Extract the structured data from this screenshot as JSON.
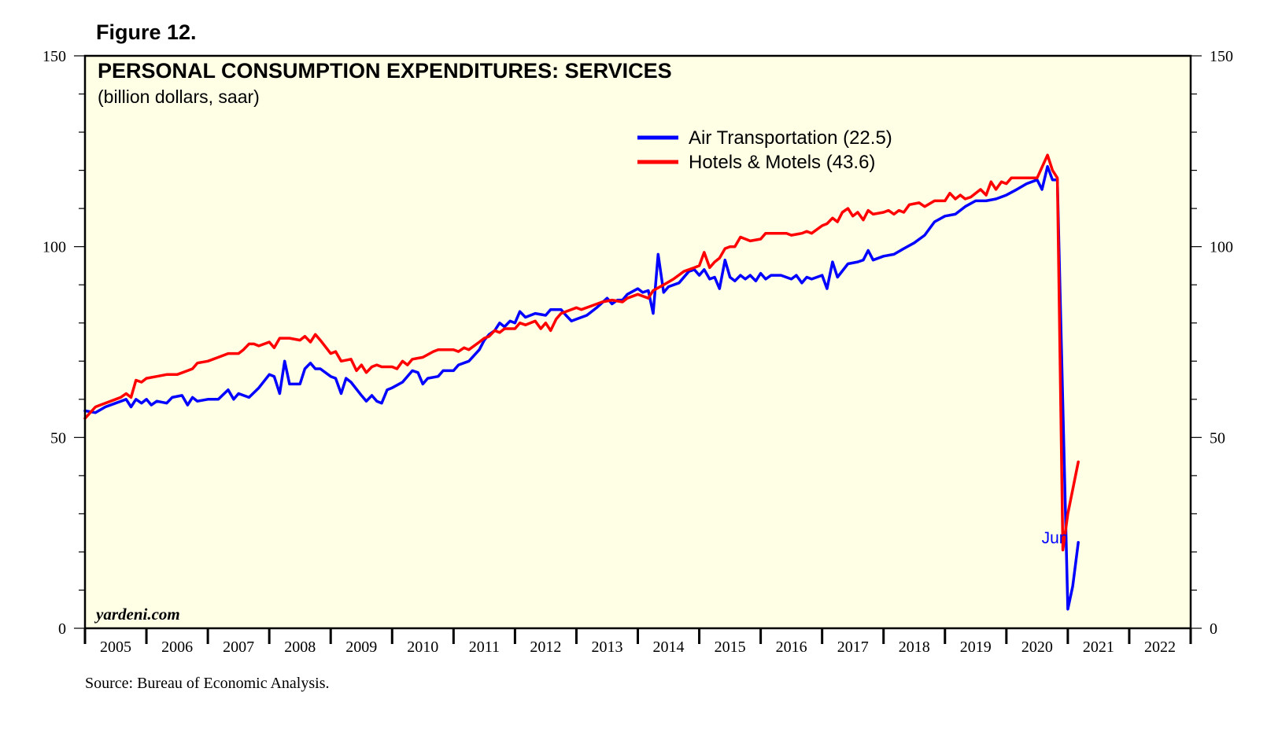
{
  "figure_label": "Figure 12.",
  "source": "Source: Bureau of Economic Analysis.",
  "watermark": "yardeni.com",
  "colors": {
    "plot_bg": "#ffffe6",
    "air": "#0000ff",
    "hotels": "#ff0000",
    "axis": "#000000"
  },
  "chart_data": {
    "type": "line",
    "title": "PERSONAL CONSUMPTION EXPENDITURES: SERVICES",
    "subtitle": "(billion dollars, saar)",
    "xlabel": "",
    "ylabel": "",
    "xlim": [
      2005,
      2023
    ],
    "ylim": [
      0,
      150
    ],
    "y_ticks": [
      0,
      50,
      100,
      150
    ],
    "x_tick_labels": [
      "2005",
      "2006",
      "2007",
      "2008",
      "2009",
      "2010",
      "2011",
      "2012",
      "2013",
      "2014",
      "2015",
      "2016",
      "2017",
      "2018",
      "2019",
      "2020",
      "2021",
      "2022"
    ],
    "legend_position": "top-center",
    "annotation": {
      "text": "Jun",
      "x": 2020.42,
      "y": 22.5
    },
    "series": [
      {
        "name": "Air Transportation (22.5)",
        "color": "#0000ff",
        "points": [
          [
            2005.0,
            57
          ],
          [
            2005.17,
            56.5
          ],
          [
            2005.33,
            58
          ],
          [
            2005.5,
            59
          ],
          [
            2005.67,
            60
          ],
          [
            2005.75,
            58
          ],
          [
            2005.83,
            60
          ],
          [
            2005.92,
            59
          ],
          [
            2006.0,
            60
          ],
          [
            2006.08,
            58.5
          ],
          [
            2006.17,
            59.5
          ],
          [
            2006.33,
            59
          ],
          [
            2006.42,
            60.5
          ],
          [
            2006.58,
            61
          ],
          [
            2006.67,
            58.5
          ],
          [
            2006.75,
            60.5
          ],
          [
            2006.83,
            59.5
          ],
          [
            2007.0,
            60
          ],
          [
            2007.17,
            60
          ],
          [
            2007.33,
            62.5
          ],
          [
            2007.42,
            60
          ],
          [
            2007.5,
            61.5
          ],
          [
            2007.67,
            60.5
          ],
          [
            2007.83,
            63
          ],
          [
            2008.0,
            66.5
          ],
          [
            2008.08,
            66
          ],
          [
            2008.17,
            61.5
          ],
          [
            2008.25,
            70
          ],
          [
            2008.33,
            64
          ],
          [
            2008.5,
            64
          ],
          [
            2008.58,
            68
          ],
          [
            2008.67,
            69.5
          ],
          [
            2008.75,
            68
          ],
          [
            2008.83,
            68
          ],
          [
            2009.0,
            66
          ],
          [
            2009.08,
            65.5
          ],
          [
            2009.17,
            61.5
          ],
          [
            2009.25,
            65.5
          ],
          [
            2009.33,
            64.5
          ],
          [
            2009.5,
            61
          ],
          [
            2009.58,
            59.5
          ],
          [
            2009.67,
            61
          ],
          [
            2009.75,
            59.5
          ],
          [
            2009.83,
            59
          ],
          [
            2009.92,
            62.5
          ],
          [
            2010.0,
            63
          ],
          [
            2010.17,
            64.5
          ],
          [
            2010.33,
            67.5
          ],
          [
            2010.42,
            67
          ],
          [
            2010.5,
            64
          ],
          [
            2010.58,
            65.5
          ],
          [
            2010.75,
            66
          ],
          [
            2010.83,
            67.5
          ],
          [
            2011.0,
            67.5
          ],
          [
            2011.08,
            69
          ],
          [
            2011.25,
            70
          ],
          [
            2011.42,
            73
          ],
          [
            2011.5,
            75.5
          ],
          [
            2011.58,
            77
          ],
          [
            2011.67,
            78
          ],
          [
            2011.75,
            80
          ],
          [
            2011.83,
            79
          ],
          [
            2011.92,
            80.5
          ],
          [
            2012.0,
            80
          ],
          [
            2012.08,
            83
          ],
          [
            2012.17,
            81.5
          ],
          [
            2012.33,
            82.5
          ],
          [
            2012.5,
            82
          ],
          [
            2012.58,
            83.5
          ],
          [
            2012.75,
            83.5
          ],
          [
            2012.83,
            82
          ],
          [
            2012.92,
            80.5
          ],
          [
            2013.0,
            81
          ],
          [
            2013.17,
            82
          ],
          [
            2013.33,
            84
          ],
          [
            2013.5,
            86.5
          ],
          [
            2013.58,
            85
          ],
          [
            2013.67,
            86
          ],
          [
            2013.75,
            86
          ],
          [
            2013.83,
            87.5
          ],
          [
            2014.0,
            89
          ],
          [
            2014.08,
            88
          ],
          [
            2014.17,
            88.5
          ],
          [
            2014.25,
            82.5
          ],
          [
            2014.33,
            98
          ],
          [
            2014.42,
            88
          ],
          [
            2014.5,
            89.5
          ],
          [
            2014.67,
            90.5
          ],
          [
            2014.83,
            93.5
          ],
          [
            2014.92,
            94
          ],
          [
            2015.0,
            92.5
          ],
          [
            2015.08,
            94
          ],
          [
            2015.17,
            91.5
          ],
          [
            2015.25,
            92
          ],
          [
            2015.33,
            89
          ],
          [
            2015.42,
            96.5
          ],
          [
            2015.5,
            92
          ],
          [
            2015.58,
            91
          ],
          [
            2015.67,
            92.5
          ],
          [
            2015.75,
            91.5
          ],
          [
            2015.83,
            92.5
          ],
          [
            2015.92,
            91
          ],
          [
            2016.0,
            93
          ],
          [
            2016.08,
            91.5
          ],
          [
            2016.17,
            92.5
          ],
          [
            2016.33,
            92.5
          ],
          [
            2016.5,
            91.5
          ],
          [
            2016.58,
            92.5
          ],
          [
            2016.67,
            90.5
          ],
          [
            2016.75,
            92
          ],
          [
            2016.83,
            91.5
          ],
          [
            2017.0,
            92.5
          ],
          [
            2017.08,
            89
          ],
          [
            2017.17,
            96
          ],
          [
            2017.25,
            92
          ],
          [
            2017.42,
            95.5
          ],
          [
            2017.58,
            96
          ],
          [
            2017.67,
            96.5
          ],
          [
            2017.75,
            99
          ],
          [
            2017.83,
            96.5
          ],
          [
            2018.0,
            97.5
          ],
          [
            2018.17,
            98
          ],
          [
            2018.33,
            99.5
          ],
          [
            2018.5,
            101
          ],
          [
            2018.67,
            103
          ],
          [
            2018.83,
            106.5
          ],
          [
            2019.0,
            108
          ],
          [
            2019.17,
            108.5
          ],
          [
            2019.33,
            110.5
          ],
          [
            2019.5,
            112
          ],
          [
            2019.67,
            112
          ],
          [
            2019.83,
            112.5
          ],
          [
            2020.0,
            113.5
          ],
          [
            2020.17,
            115
          ],
          [
            2020.33,
            116.5
          ],
          [
            2020.5,
            117.5
          ],
          [
            2020.58,
            115
          ],
          [
            2020.67,
            121
          ],
          [
            2020.75,
            117.5
          ],
          [
            2020.83,
            117.5
          ],
          [
            2021.0,
            5
          ],
          [
            2021.08,
            11
          ],
          [
            2021.17,
            22.5
          ]
        ]
      },
      {
        "name": "Hotels & Motels (43.6)",
        "color": "#ff0000",
        "points": [
          [
            2005.0,
            55
          ],
          [
            2005.17,
            58
          ],
          [
            2005.33,
            59
          ],
          [
            2005.5,
            60
          ],
          [
            2005.58,
            60.5
          ],
          [
            2005.67,
            61.5
          ],
          [
            2005.75,
            60.5
          ],
          [
            2005.83,
            65
          ],
          [
            2005.92,
            64.5
          ],
          [
            2006.0,
            65.5
          ],
          [
            2006.17,
            66
          ],
          [
            2006.33,
            66.5
          ],
          [
            2006.5,
            66.5
          ],
          [
            2006.67,
            67.5
          ],
          [
            2006.75,
            68
          ],
          [
            2006.83,
            69.5
          ],
          [
            2007.0,
            70
          ],
          [
            2007.17,
            71
          ],
          [
            2007.33,
            72
          ],
          [
            2007.5,
            72
          ],
          [
            2007.58,
            73
          ],
          [
            2007.67,
            74.5
          ],
          [
            2007.75,
            74.5
          ],
          [
            2007.83,
            74
          ],
          [
            2008.0,
            75
          ],
          [
            2008.08,
            73.5
          ],
          [
            2008.17,
            76
          ],
          [
            2008.33,
            76
          ],
          [
            2008.5,
            75.5
          ],
          [
            2008.58,
            76.5
          ],
          [
            2008.67,
            75
          ],
          [
            2008.75,
            77
          ],
          [
            2008.83,
            75.5
          ],
          [
            2009.0,
            72
          ],
          [
            2009.08,
            72.5
          ],
          [
            2009.17,
            70
          ],
          [
            2009.33,
            70.5
          ],
          [
            2009.42,
            67.5
          ],
          [
            2009.5,
            69
          ],
          [
            2009.58,
            67
          ],
          [
            2009.67,
            68.5
          ],
          [
            2009.75,
            69
          ],
          [
            2009.83,
            68.5
          ],
          [
            2010.0,
            68.5
          ],
          [
            2010.08,
            68
          ],
          [
            2010.17,
            70
          ],
          [
            2010.25,
            69
          ],
          [
            2010.33,
            70.5
          ],
          [
            2010.5,
            71
          ],
          [
            2010.67,
            72.5
          ],
          [
            2010.75,
            73
          ],
          [
            2010.83,
            73
          ],
          [
            2011.0,
            73
          ],
          [
            2011.08,
            72.5
          ],
          [
            2011.17,
            73.5
          ],
          [
            2011.25,
            73
          ],
          [
            2011.42,
            75
          ],
          [
            2011.5,
            76
          ],
          [
            2011.58,
            76.5
          ],
          [
            2011.67,
            78
          ],
          [
            2011.75,
            77.5
          ],
          [
            2011.83,
            78.5
          ],
          [
            2012.0,
            78.5
          ],
          [
            2012.08,
            80
          ],
          [
            2012.17,
            79.5
          ],
          [
            2012.33,
            80.5
          ],
          [
            2012.42,
            78.5
          ],
          [
            2012.5,
            80
          ],
          [
            2012.58,
            78
          ],
          [
            2012.67,
            81
          ],
          [
            2012.75,
            82.5
          ],
          [
            2012.83,
            83
          ],
          [
            2013.0,
            84
          ],
          [
            2013.08,
            83.5
          ],
          [
            2013.25,
            84.5
          ],
          [
            2013.42,
            85.5
          ],
          [
            2013.58,
            86
          ],
          [
            2013.75,
            85.5
          ],
          [
            2013.83,
            86.5
          ],
          [
            2014.0,
            87.5
          ],
          [
            2014.17,
            86.5
          ],
          [
            2014.25,
            88.5
          ],
          [
            2014.42,
            90
          ],
          [
            2014.58,
            91.5
          ],
          [
            2014.75,
            93.5
          ],
          [
            2014.92,
            94.5
          ],
          [
            2015.0,
            95
          ],
          [
            2015.08,
            98.5
          ],
          [
            2015.17,
            94.5
          ],
          [
            2015.25,
            96
          ],
          [
            2015.33,
            97
          ],
          [
            2015.42,
            99.5
          ],
          [
            2015.5,
            100
          ],
          [
            2015.58,
            100
          ],
          [
            2015.67,
            102.5
          ],
          [
            2015.83,
            101.5
          ],
          [
            2016.0,
            102
          ],
          [
            2016.08,
            103.5
          ],
          [
            2016.25,
            103.5
          ],
          [
            2016.42,
            103.5
          ],
          [
            2016.5,
            103
          ],
          [
            2016.67,
            103.5
          ],
          [
            2016.75,
            104
          ],
          [
            2016.83,
            103.5
          ],
          [
            2017.0,
            105.5
          ],
          [
            2017.08,
            106
          ],
          [
            2017.17,
            107.5
          ],
          [
            2017.25,
            106.5
          ],
          [
            2017.33,
            109
          ],
          [
            2017.42,
            110
          ],
          [
            2017.5,
            108
          ],
          [
            2017.58,
            109
          ],
          [
            2017.67,
            107
          ],
          [
            2017.75,
            109.5
          ],
          [
            2017.83,
            108.5
          ],
          [
            2018.0,
            109
          ],
          [
            2018.08,
            109.5
          ],
          [
            2018.17,
            108.5
          ],
          [
            2018.25,
            109.5
          ],
          [
            2018.33,
            109
          ],
          [
            2018.42,
            111
          ],
          [
            2018.58,
            111.5
          ],
          [
            2018.67,
            110.5
          ],
          [
            2018.83,
            112
          ],
          [
            2019.0,
            112
          ],
          [
            2019.08,
            114
          ],
          [
            2019.17,
            112.5
          ],
          [
            2019.25,
            113.5
          ],
          [
            2019.33,
            112.5
          ],
          [
            2019.42,
            113
          ],
          [
            2019.5,
            114
          ],
          [
            2019.58,
            115
          ],
          [
            2019.67,
            113.5
          ],
          [
            2019.75,
            117
          ],
          [
            2019.83,
            115
          ],
          [
            2019.92,
            117
          ],
          [
            2020.0,
            116.5
          ],
          [
            2020.08,
            118
          ],
          [
            2020.17,
            118
          ],
          [
            2020.33,
            118
          ],
          [
            2020.5,
            118
          ],
          [
            2020.67,
            124
          ],
          [
            2020.75,
            120
          ],
          [
            2020.83,
            118
          ],
          [
            2020.92,
            20.5
          ],
          [
            2021.0,
            30
          ],
          [
            2021.17,
            43.6
          ]
        ]
      }
    ]
  }
}
